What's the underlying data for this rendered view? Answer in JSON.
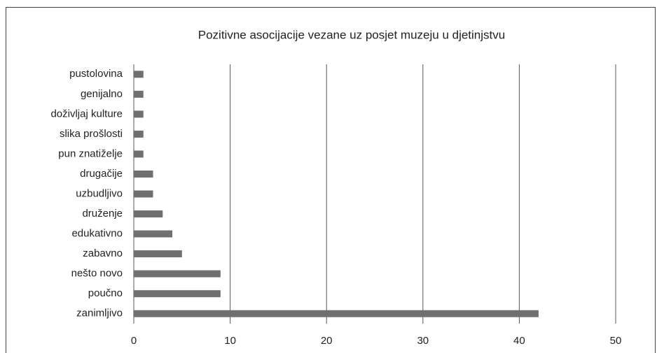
{
  "chart_data": {
    "type": "bar",
    "orientation": "horizontal",
    "title": "Pozitivne asocijacije vezane uz posjet muzeju u djetinjstvu",
    "categories": [
      "pustolovina",
      "genijalno",
      "doživljaj kulture",
      "slika prošlosti",
      "pun znatiželje",
      "drugačije",
      "uzbudljivo",
      "druženje",
      "edukativno",
      "zabavno",
      "nešto novo",
      "poučno",
      "zanimljivo"
    ],
    "values": [
      1,
      1,
      1,
      1,
      1,
      2,
      2,
      3,
      4,
      5,
      9,
      9,
      42
    ],
    "color": "#6f6f6f",
    "xlim": [
      0,
      50
    ],
    "xticks": [
      0,
      10,
      20,
      30,
      40,
      50
    ],
    "grid": true
  }
}
